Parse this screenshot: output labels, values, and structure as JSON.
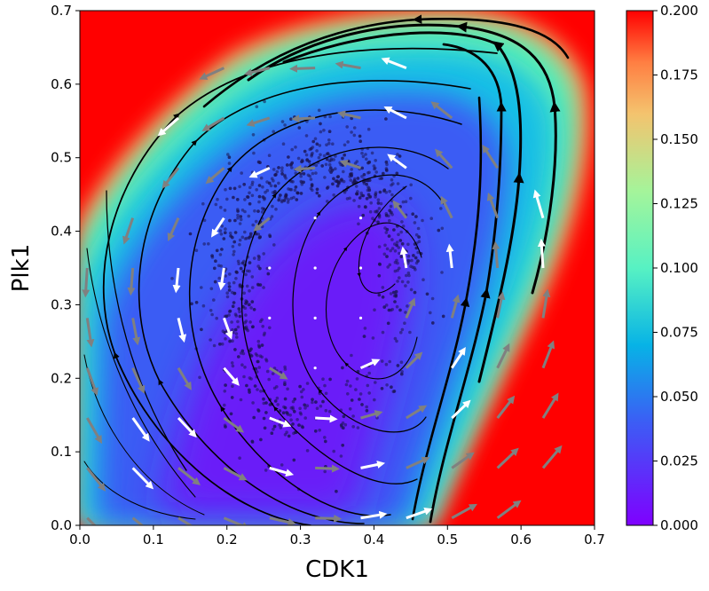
{
  "chart_data": {
    "type": "heatmap",
    "title": "",
    "xlabel": "CDK1",
    "ylabel": "Plk1",
    "xlim": [
      0.0,
      0.7
    ],
    "ylim": [
      0.0,
      0.7
    ],
    "x_ticks": [
      "0.0",
      "0.1",
      "0.2",
      "0.3",
      "0.4",
      "0.5",
      "0.6",
      "0.7"
    ],
    "y_ticks": [
      "0.0",
      "0.1",
      "0.2",
      "0.3",
      "0.4",
      "0.5",
      "0.6",
      "0.7"
    ],
    "colorbar": {
      "colormap": "rainbow",
      "range": [
        0.0,
        0.2
      ],
      "ticks": [
        "0.000",
        "0.025",
        "0.050",
        "0.075",
        "0.100",
        "0.125",
        "0.150",
        "0.175",
        "0.200"
      ]
    },
    "limit_cycle_center": {
      "x": 0.33,
      "y": 0.33
    },
    "fixed_point": {
      "x": 0.45,
      "y": 0.46
    },
    "flow_direction": "counter-clockwise",
    "layers": [
      "potential-heatmap",
      "cell-scatter",
      "streamlines",
      "velocity-arrows"
    ]
  }
}
